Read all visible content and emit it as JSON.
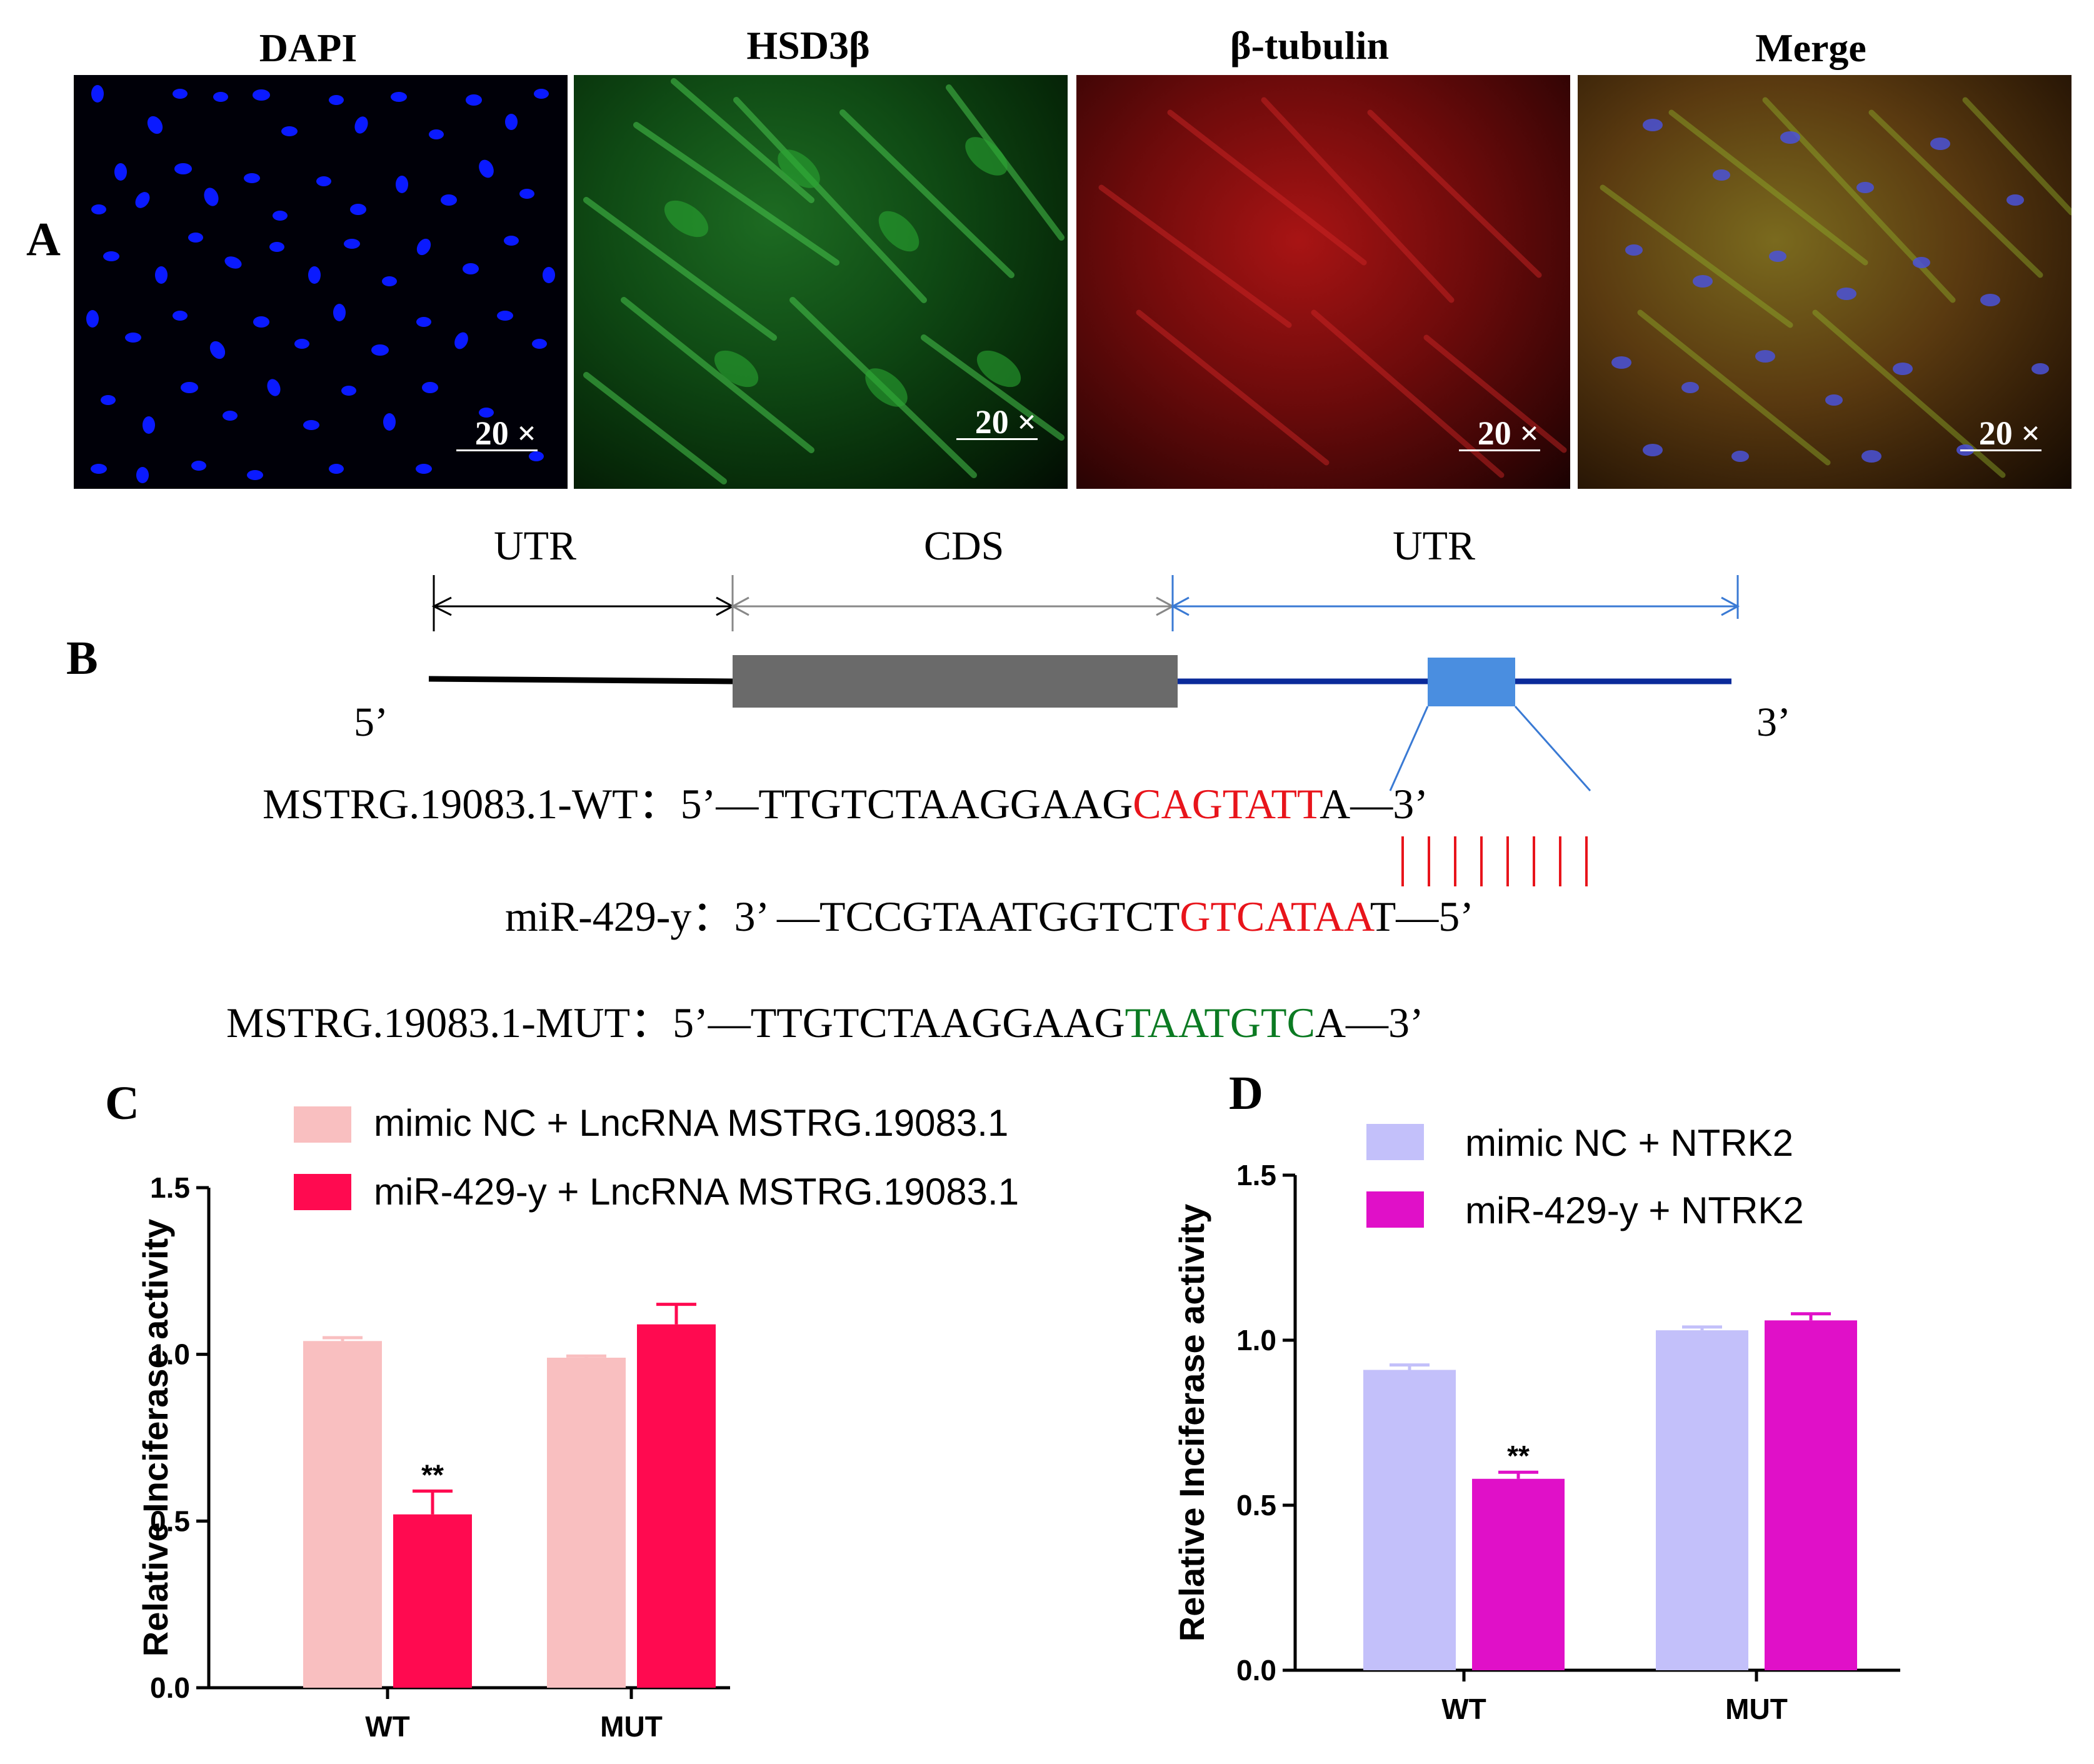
{
  "panel_a": {
    "label": "A",
    "titles": [
      "DAPI",
      "HSD3β",
      "β-tubulin",
      "Merge"
    ],
    "scale_text": "20 ×",
    "colors": {
      "dapi": "#0a1aff",
      "hsd": "#1fbf2a",
      "tub": "#d01010"
    }
  },
  "panel_b": {
    "label": "B",
    "regions": [
      "UTR",
      "CDS",
      "UTR"
    ],
    "five_prime": "5’",
    "three_prime": "3’",
    "wt": {
      "name": "MSTRG.19083.1-WT",
      "sep": "：",
      "start": "5’—TTGTCTAAGGAAG",
      "site": "CAGTATT",
      "end": "A—3’"
    },
    "mir": {
      "name": "miR-429-y",
      "sep": "：",
      "start": "3’ —TCCGTAATGGTCT",
      "site": "GTCATAA",
      "end": "T—5’"
    },
    "mut": {
      "name": "MSTRG.19083.1-MUT",
      "sep": "：",
      "start": "5’—TTGTCTAAGGAAG",
      "site": "TAATGTC",
      "end": "A—3’"
    }
  },
  "chart_data": [
    {
      "panel": "C",
      "type": "bar",
      "categories": [
        "WT",
        "MUT"
      ],
      "series": [
        {
          "name": "mimic NC + LncRNA MSTRG.19083.1",
          "values": [
            1.04,
            0.99
          ],
          "errors": [
            0.01,
            0.005
          ],
          "color": "#f9bfc0"
        },
        {
          "name": "miR-429-y + LncRNA MSTRG.19083.1",
          "values": [
            0.52,
            1.09
          ],
          "errors": [
            0.07,
            0.06
          ],
          "color": "#ff0a50"
        }
      ],
      "annotations": [
        {
          "category": "WT",
          "series": 1,
          "text": "**"
        }
      ],
      "ylabel": "Relative Inciferase activity",
      "ylim": [
        0,
        1.5
      ],
      "yticks": [
        "0.0",
        "0.5",
        "1.0",
        "1.5"
      ]
    },
    {
      "panel": "D",
      "type": "bar",
      "categories": [
        "WT",
        "MUT"
      ],
      "series": [
        {
          "name": "mimic NC + NTRK2",
          "values": [
            0.91,
            1.03
          ],
          "errors": [
            0.015,
            0.01
          ],
          "color": "#c3c0fa"
        },
        {
          "name": "miR-429-y + NTRK2",
          "values": [
            0.58,
            1.06
          ],
          "errors": [
            0.02,
            0.02
          ],
          "color": "#e010c8"
        }
      ],
      "annotations": [
        {
          "category": "WT",
          "series": 1,
          "text": "**"
        }
      ],
      "ylabel": "Relative Inciferase activity",
      "ylim": [
        0,
        1.5
      ],
      "yticks": [
        "0.0",
        "0.5",
        "1.0",
        "1.5"
      ]
    }
  ]
}
